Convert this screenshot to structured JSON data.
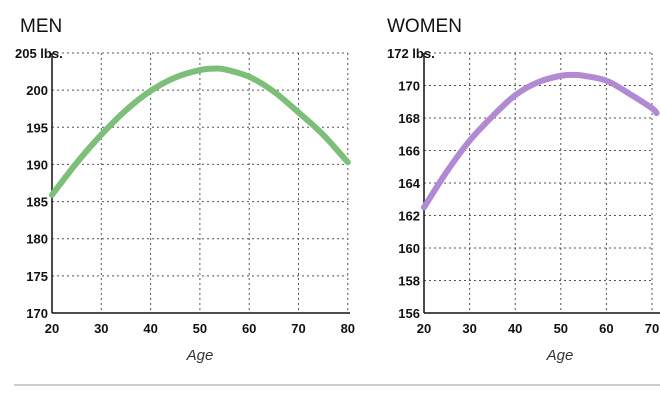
{
  "chart_data": [
    {
      "type": "line",
      "title": "MEN",
      "xlabel": "Age",
      "ylabel_unit": "lbs.",
      "xlim": [
        20,
        80
      ],
      "ylim": [
        170,
        205
      ],
      "x_ticks": [
        "20",
        "30",
        "40",
        "50",
        "60",
        "70",
        "80"
      ],
      "y_ticks": [
        "205 lbs.",
        "200",
        "195",
        "190",
        "185",
        "180",
        "175",
        "170"
      ],
      "grid": true,
      "color": "#7dbf78",
      "series": [
        {
          "x": [
            20,
            25,
            30,
            35,
            40,
            45,
            50,
            53,
            55,
            60,
            65,
            70,
            75,
            80
          ],
          "y": [
            185.9,
            190.2,
            194.0,
            197.3,
            199.9,
            201.7,
            202.7,
            202.9,
            202.8,
            201.8,
            199.8,
            197.0,
            194.0,
            190.3
          ]
        }
      ]
    },
    {
      "type": "line",
      "title": "WOMEN",
      "xlabel": "Age",
      "ylabel_unit": "lbs.",
      "xlim": [
        20,
        70
      ],
      "ylim": [
        156,
        172
      ],
      "x_ticks": [
        "20",
        "30",
        "40",
        "50",
        "60",
        "70"
      ],
      "y_ticks": [
        "172 lbs.",
        "170",
        "168",
        "166",
        "164",
        "162",
        "160",
        "158",
        "156"
      ],
      "grid": true,
      "color": "#b28ad3",
      "series": [
        {
          "x": [
            20,
            25,
            30,
            35,
            40,
            45,
            50,
            53,
            55,
            60,
            65,
            70,
            71
          ],
          "y": [
            162.5,
            164.7,
            166.6,
            168.1,
            169.4,
            170.2,
            170.6,
            170.65,
            170.6,
            170.3,
            169.5,
            168.6,
            168.3
          ]
        }
      ]
    }
  ]
}
